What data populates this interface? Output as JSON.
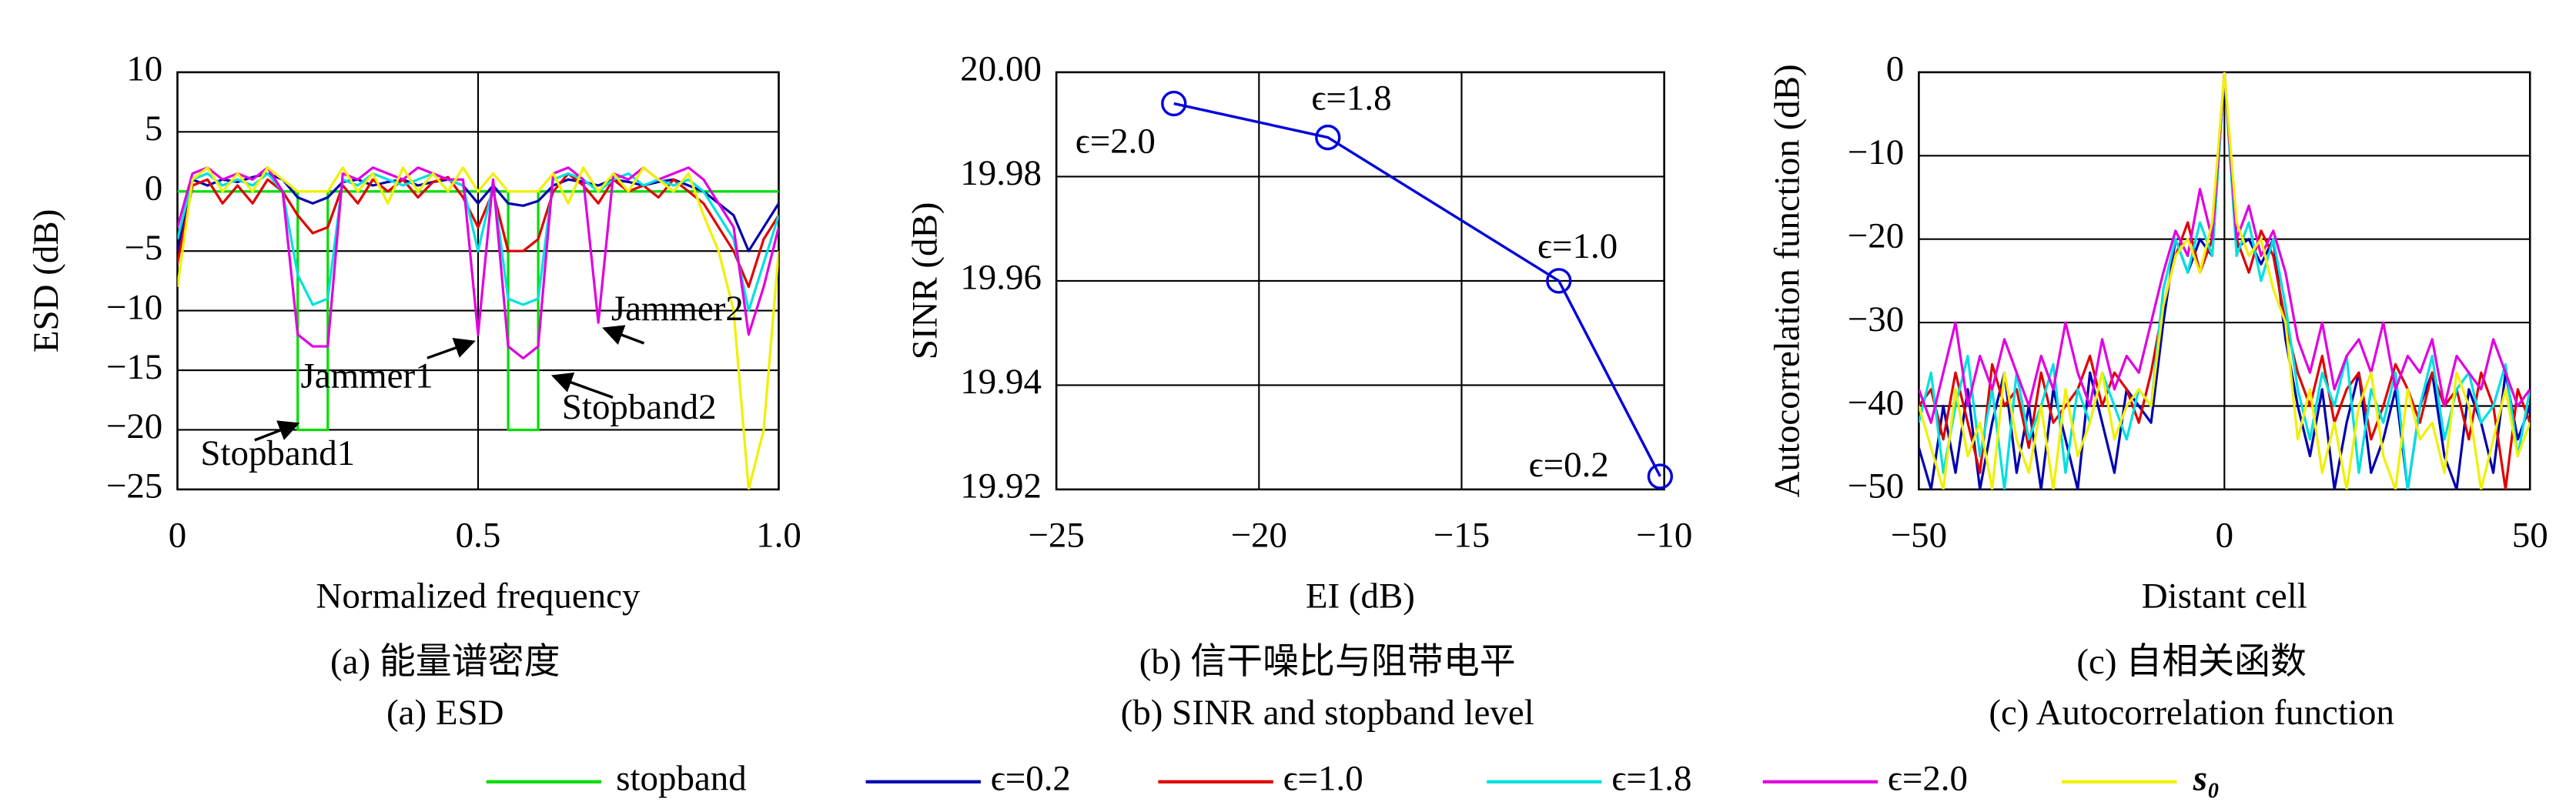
{
  "chart_data": [
    {
      "type": "line",
      "title": "(a) 能量谱密度",
      "subtitle": "(a) ESD",
      "x_label": "Normalized frequency",
      "y_label": "ESD (dB)",
      "xlim": [
        0,
        1
      ],
      "ylim": [
        -25,
        10
      ],
      "grid": true,
      "legend": "bottom",
      "xticks": [
        0,
        0.5,
        {
          "value": 1,
          "label": "1.0"
        }
      ],
      "yticks": [
        10,
        5,
        0,
        {
          "value": -5,
          "label": "−5"
        },
        {
          "value": -10,
          "label": "−10"
        },
        {
          "value": -15,
          "label": "−15"
        },
        {
          "value": -20,
          "label": "−20"
        },
        {
          "value": -25,
          "label": "−25"
        }
      ],
      "annotations": [
        "Jammer2",
        "Jammer1",
        "Stopband2",
        "Stopband1"
      ],
      "x": [
        0,
        0.025,
        0.05,
        0.075,
        0.1,
        0.125,
        0.15,
        0.175,
        0.2,
        0.225,
        0.25,
        0.275,
        0.3,
        0.325,
        0.35,
        0.375,
        0.4,
        0.425,
        0.45,
        0.475,
        0.5,
        0.525,
        0.55,
        0.575,
        0.6,
        0.625,
        0.65,
        0.675,
        0.7,
        0.725,
        0.75,
        0.775,
        0.8,
        0.825,
        0.85,
        0.875,
        0.9,
        0.925,
        0.95,
        0.975,
        1
      ],
      "series": [
        {
          "name": "stopband",
          "color": "#00dd00",
          "x": [
            0,
            0.2,
            0.2,
            0.25,
            0.25,
            0.55,
            0.55,
            0.6,
            0.6,
            1
          ],
          "values": [
            0,
            0,
            -20,
            -20,
            0,
            0,
            -20,
            -20,
            0,
            0
          ]
        },
        {
          "name": "ϵ=0.2",
          "color": "#0000b0",
          "values": [
            -5,
            1,
            0.5,
            1,
            0.8,
            1.2,
            1.5,
            1,
            -0.5,
            -1,
            -0.5,
            0.8,
            1,
            0.5,
            0.8,
            1,
            0.5,
            0.8,
            1,
            0.5,
            -1,
            0.5,
            -1,
            -1.2,
            -0.8,
            0.5,
            1,
            0.8,
            0.5,
            1,
            0.8,
            0.5,
            0.8,
            1,
            0.5,
            0,
            -1,
            -2,
            -5,
            -3,
            -1
          ]
        },
        {
          "name": "ϵ=1.0",
          "color": "#e00000",
          "values": [
            -6,
            0.5,
            1,
            -1,
            0.5,
            -1,
            1,
            0,
            -2,
            -3.5,
            -3,
            0.5,
            -1,
            1,
            0,
            1,
            -0.5,
            0.8,
            1.2,
            -0.5,
            -3,
            0,
            -5,
            -5,
            -4,
            0,
            1.5,
            0.5,
            -1,
            1,
            0,
            0.5,
            -0.5,
            1,
            0,
            -1,
            -3,
            -5,
            -8,
            -4,
            -2
          ]
        },
        {
          "name": "ϵ=1.8",
          "color": "#00e0e0",
          "values": [
            -4,
            1,
            1.5,
            0.5,
            1,
            0.5,
            1.5,
            0,
            -7,
            -9.5,
            -9,
            1,
            0.5,
            1.5,
            1,
            0.5,
            1,
            1.5,
            1,
            0.5,
            -5,
            0.5,
            -9,
            -9.5,
            -9,
            1,
            1.5,
            1,
            0,
            1,
            1.5,
            0.5,
            1,
            0.5,
            1,
            0,
            -2,
            -4,
            -10,
            -6,
            -2
          ]
        },
        {
          "name": "ϵ=2.0",
          "color": "#e000e0",
          "values": [
            -3,
            1.5,
            2,
            1,
            1.5,
            1,
            2,
            0,
            -12,
            -13,
            -13,
            1.5,
            1,
            2,
            1.5,
            1,
            2,
            1.5,
            1,
            1,
            -12,
            1,
            -13,
            -14,
            -13,
            1.5,
            2,
            1,
            -11,
            1.5,
            1,
            2,
            1,
            1.5,
            2,
            1,
            -1,
            -3,
            -12,
            -8,
            -3
          ]
        },
        {
          "name": "s₀",
          "color": "#f0f000",
          "values": [
            -8,
            1,
            2,
            0,
            1.5,
            0,
            2,
            1,
            0,
            0,
            0,
            2,
            0,
            1.5,
            -1,
            2,
            0,
            1.5,
            0,
            2,
            0,
            1.5,
            0,
            0,
            0,
            1.5,
            -1,
            2,
            0,
            1.5,
            0,
            2,
            1,
            0,
            1.5,
            -2,
            -5,
            -10,
            -25,
            -20,
            -5
          ]
        }
      ]
    },
    {
      "type": "line",
      "title": "(b) 信干噪比与阻带电平",
      "subtitle": "(b) SINR and stopband level",
      "x_label": "EI (dB)",
      "y_label": "SINR (dB)",
      "xlim": [
        -25,
        -10
      ],
      "ylim": [
        19.92,
        20
      ],
      "grid": true,
      "xticks": [
        {
          "value": -25,
          "label": "−25"
        },
        {
          "value": -20,
          "label": "−20"
        },
        {
          "value": -15,
          "label": "−15"
        },
        {
          "value": -10,
          "label": "−10"
        }
      ],
      "yticks": [
        19.92,
        19.94,
        19.96,
        19.98,
        {
          "value": 20,
          "label": "20.00"
        }
      ],
      "point_labels": [
        "ϵ=2.0",
        "ϵ=1.8",
        "ϵ=1.0",
        "ϵ=0.2"
      ],
      "x": [
        -22.1,
        -18.3,
        -12.6,
        -10.1
      ],
      "series": [
        {
          "color": "#0000dd",
          "marker": "circle",
          "values": [
            19.994,
            19.9875,
            19.96,
            19.9225
          ]
        }
      ]
    },
    {
      "type": "line",
      "title": "(c) 自相关函数",
      "subtitle": "(c) Autocorrelation function",
      "x_label": "Distant cell",
      "y_label": "Autocorrelation function (dB)",
      "xlim": [
        -50,
        50
      ],
      "ylim": [
        -50,
        0
      ],
      "grid": true,
      "xticks": [
        {
          "value": -50,
          "label": "−50"
        },
        0,
        50
      ],
      "yticks": [
        0,
        {
          "value": -10,
          "label": "−10"
        },
        {
          "value": -20,
          "label": "−20"
        },
        {
          "value": -30,
          "label": "−30"
        },
        {
          "value": -40,
          "label": "−40"
        },
        {
          "value": -50,
          "label": "−50"
        }
      ],
      "x": [
        -50,
        -48,
        -46,
        -44,
        -42,
        -40,
        -38,
        -36,
        -34,
        -32,
        -30,
        -28,
        -26,
        -24,
        -22,
        -20,
        -18,
        -16,
        -14,
        -12,
        -10,
        -8,
        -6,
        -4,
        -2,
        0,
        2,
        4,
        6,
        8,
        10,
        12,
        14,
        16,
        18,
        20,
        22,
        24,
        26,
        28,
        30,
        32,
        34,
        36,
        38,
        40,
        42,
        44,
        46,
        48,
        50
      ],
      "series": [
        {
          "color": "#0000b0",
          "values": [
            -45,
            -50,
            -40,
            -48,
            -38,
            -50,
            -42,
            -36,
            -48,
            -40,
            -50,
            -38,
            -44,
            -50,
            -36,
            -42,
            -48,
            -38,
            -40,
            -42,
            -30,
            -20,
            -24,
            -20,
            -22,
            0,
            -21,
            -20,
            -23,
            -20,
            -32,
            -40,
            -46,
            -38,
            -50,
            -42,
            -36,
            -48,
            -44,
            -38,
            -50,
            -40,
            -36,
            -46,
            -50,
            -38,
            -42,
            -48,
            -36,
            -44,
            -40
          ]
        },
        {
          "color": "#e00000",
          "values": [
            -40,
            -38,
            -44,
            -36,
            -42,
            -48,
            -35,
            -40,
            -38,
            -45,
            -36,
            -42,
            -40,
            -38,
            -34,
            -40,
            -36,
            -38,
            -42,
            -36,
            -28,
            -22,
            -18,
            -24,
            -20,
            0,
            -20,
            -24,
            -19,
            -22,
            -30,
            -36,
            -40,
            -34,
            -42,
            -38,
            -36,
            -44,
            -40,
            -35,
            -38,
            -42,
            -36,
            -40,
            -38,
            -44,
            -36,
            -40,
            -50,
            -38,
            -42
          ]
        },
        {
          "color": "#00e0e0",
          "values": [
            -42,
            -36,
            -48,
            -40,
            -34,
            -46,
            -38,
            -50,
            -36,
            -44,
            -40,
            -35,
            -48,
            -38,
            -42,
            -36,
            -40,
            -44,
            -38,
            -40,
            -26,
            -20,
            -24,
            -18,
            -22,
            0,
            -22,
            -18,
            -25,
            -20,
            -28,
            -38,
            -44,
            -36,
            -40,
            -34,
            -48,
            -38,
            -42,
            -36,
            -50,
            -40,
            -34,
            -44,
            -38,
            -36,
            -42,
            -40,
            -35,
            -46,
            -38
          ]
        },
        {
          "color": "#e000e0",
          "values": [
            -38,
            -42,
            -36,
            -30,
            -40,
            -34,
            -38,
            -32,
            -36,
            -40,
            -34,
            -38,
            -30,
            -36,
            -40,
            -32,
            -38,
            -34,
            -36,
            -30,
            -24,
            -19,
            -22,
            -14,
            -20,
            0,
            -20,
            -16,
            -22,
            -19,
            -24,
            -32,
            -36,
            -30,
            -38,
            -34,
            -32,
            -36,
            -30,
            -38,
            -34,
            -36,
            -32,
            -40,
            -34,
            -36,
            -38,
            -32,
            -36,
            -40,
            -38
          ]
        },
        {
          "color": "#f0f000",
          "values": [
            -40,
            -45,
            -50,
            -38,
            -46,
            -42,
            -50,
            -36,
            -44,
            -48,
            -40,
            -50,
            -38,
            -46,
            -42,
            -36,
            -44,
            -40,
            -38,
            -40,
            -28,
            -22,
            -20,
            -24,
            -18,
            0,
            -18,
            -22,
            -20,
            -26,
            -30,
            -44,
            -38,
            -48,
            -42,
            -50,
            -40,
            -36,
            -46,
            -50,
            -38,
            -44,
            -42,
            -48,
            -36,
            -40,
            -50,
            -44,
            -38,
            -46,
            -42
          ]
        }
      ]
    }
  ]
}
